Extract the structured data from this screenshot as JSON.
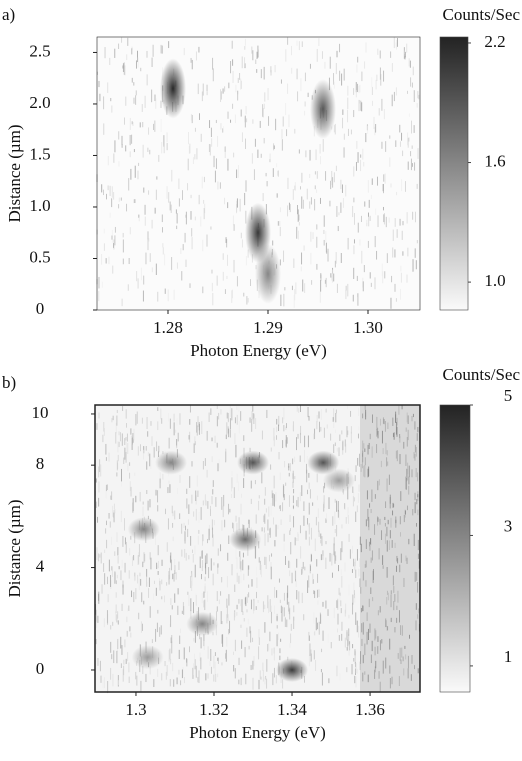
{
  "chart_data": [
    {
      "type": "heatmap",
      "label": "a)",
      "xlabel": "Photon Energy (eV)",
      "ylabel": "Distance (µm)",
      "colorbar_label": "Counts/Sec",
      "xlim": [
        1.2729,
        1.3052
      ],
      "xticks": [
        1.28,
        1.29,
        {
          "value": 1.3,
          "label": "1.30"
        }
      ],
      "ylim": [
        0,
        2.65
      ],
      "yticks": [
        0,
        0.5,
        {
          "value": 1,
          "label": "1.0"
        },
        1.5,
        {
          "value": 2,
          "label": "2.0"
        },
        2.5
      ],
      "clim": [
        0.86,
        2.23
      ],
      "cticks": [
        {
          "value": 1,
          "label": "1.0"
        },
        1.6,
        2.2
      ],
      "x": [
        1.2805,
        1.2955,
        1.289,
        1.29
      ],
      "y": [
        2.15,
        1.95,
        0.75,
        0.35
      ],
      "values": [
        2.2,
        1.9,
        2.1,
        1.6
      ]
    },
    {
      "type": "heatmap",
      "label": "b)",
      "xlabel": "Photon Energy (eV)",
      "ylabel": "Distance (µm)",
      "colorbar_label": "Counts/Sec",
      "xlim": [
        1.2895,
        1.3728
      ],
      "xticks": [
        {
          "value": 1.3,
          "label": "1.3"
        },
        1.32,
        1.34,
        1.36
      ],
      "ylim": [
        -0.86,
        10.35
      ],
      "yticks": [
        0,
        4,
        8,
        10
      ],
      "clim": [
        0.6,
        5
      ],
      "cticks": [
        1,
        3,
        5
      ],
      "x": [
        1.303,
        1.317,
        1.34,
        1.302,
        1.328,
        1.309,
        1.33,
        1.348,
        1.352
      ],
      "y": [
        0.5,
        1.8,
        0,
        5.5,
        5.1,
        8.1,
        8.1,
        8.1,
        7.4
      ],
      "values": [
        2.5,
        3,
        4.5,
        3,
        3.5,
        3,
        4,
        4,
        2.5
      ]
    }
  ]
}
